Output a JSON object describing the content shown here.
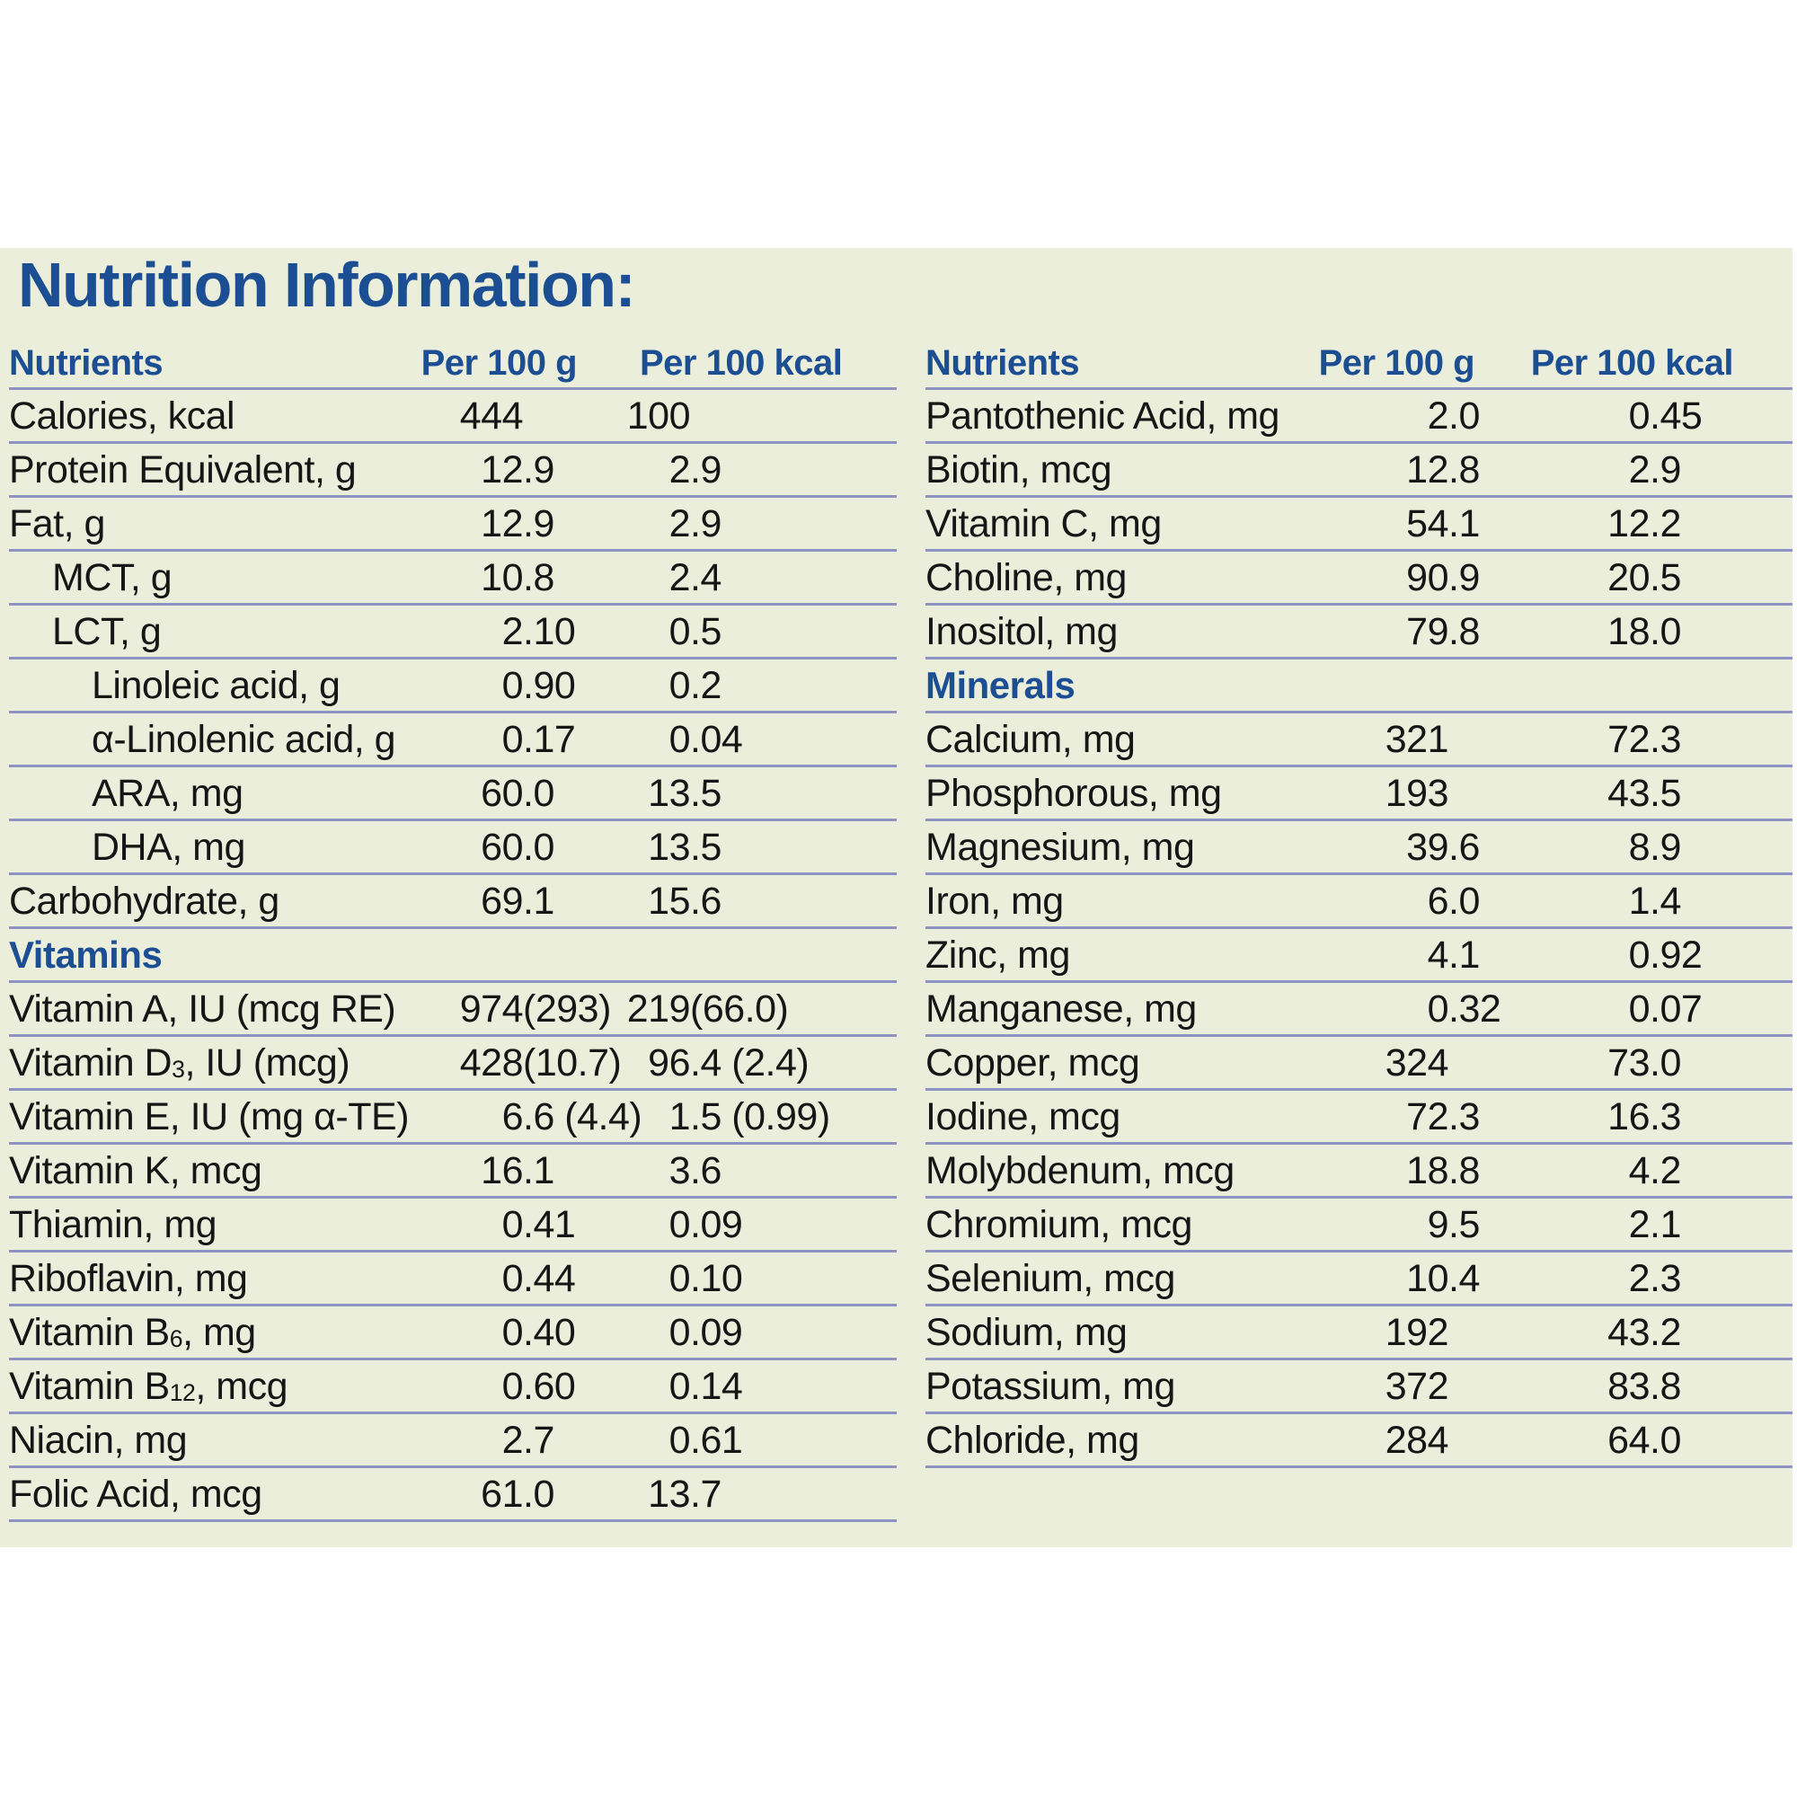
{
  "title": "Nutrition Information:",
  "colors": {
    "accent": "#1b4e92",
    "panel-bg": "#ebeeda",
    "line": "#8f93c3",
    "text": "#161616"
  },
  "columns": {
    "nutrients": "Nutrients",
    "per_100g": "Per 100 g",
    "per_100kcal": "Per 100 kcal"
  },
  "left_table": {
    "rows": [
      {
        "label": "Calories, kcal",
        "indent": 0,
        "per_100g": "444",
        "per_100kcal": "100"
      },
      {
        "label": "Protein Equivalent, g",
        "indent": 0,
        "per_100g": "12.9",
        "per_100kcal": "2.9"
      },
      {
        "label": "Fat, g",
        "indent": 0,
        "per_100g": "12.9",
        "per_100kcal": "2.9"
      },
      {
        "label": "MCT, g",
        "indent": 1,
        "per_100g": "10.8",
        "per_100kcal": "2.4"
      },
      {
        "label": "LCT, g",
        "indent": 1,
        "per_100g": "2.10",
        "per_100kcal": "0.5"
      },
      {
        "label": "Linoleic acid, g",
        "indent": 2,
        "per_100g": "0.90",
        "per_100kcal": "0.2"
      },
      {
        "label": "α-Linolenic acid, g",
        "indent": 2,
        "per_100g": "0.17",
        "per_100kcal": "0.04"
      },
      {
        "label": "ARA, mg",
        "indent": 2,
        "per_100g": "60.0",
        "per_100kcal": "13.5"
      },
      {
        "label": "DHA, mg",
        "indent": 2,
        "per_100g": "60.0",
        "per_100kcal": "13.5"
      },
      {
        "label": "Carbohydrate, g",
        "indent": 0,
        "per_100g": "69.1",
        "per_100kcal": "15.6"
      },
      {
        "section": "Vitamins"
      },
      {
        "label": "Vitamin A, IU (mcg RE)",
        "indent": 0,
        "per_100g": "974 (293)",
        "per_100kcal": "219 (66.0)"
      },
      {
        "label": "Vitamin D[3], IU (mcg)",
        "indent": 0,
        "per_100g": "428 (10.7)",
        "per_100kcal": "96.4 (2.4)"
      },
      {
        "label": "Vitamin E, IU (mg α-TE)",
        "indent": 0,
        "per_100g": "6.6 (4.4)",
        "per_100kcal": "1.5 (0.99)"
      },
      {
        "label": "Vitamin K, mcg",
        "indent": 0,
        "per_100g": "16.1",
        "per_100kcal": "3.6"
      },
      {
        "label": "Thiamin, mg",
        "indent": 0,
        "per_100g": "0.41",
        "per_100kcal": "0.09"
      },
      {
        "label": "Riboflavin, mg",
        "indent": 0,
        "per_100g": "0.44",
        "per_100kcal": "0.10"
      },
      {
        "label": "Vitamin B[6], mg",
        "indent": 0,
        "per_100g": "0.40",
        "per_100kcal": "0.09"
      },
      {
        "label": "Vitamin B[12], mcg",
        "indent": 0,
        "per_100g": "0.60",
        "per_100kcal": "0.14"
      },
      {
        "label": "Niacin, mg",
        "indent": 0,
        "per_100g": "2.7",
        "per_100kcal": "0.61"
      },
      {
        "label": "Folic Acid, mcg",
        "indent": 0,
        "per_100g": "61.0",
        "per_100kcal": "13.7"
      }
    ]
  },
  "right_table": {
    "rows": [
      {
        "label": "Pantothenic Acid, mg",
        "indent": 0,
        "per_100g": "2.0",
        "per_100kcal": "0.45"
      },
      {
        "label": "Biotin, mcg",
        "indent": 0,
        "per_100g": "12.8",
        "per_100kcal": "2.9"
      },
      {
        "label": "Vitamin C, mg",
        "indent": 0,
        "per_100g": "54.1",
        "per_100kcal": "12.2"
      },
      {
        "label": "Choline, mg",
        "indent": 0,
        "per_100g": "90.9",
        "per_100kcal": "20.5"
      },
      {
        "label": "Inositol, mg",
        "indent": 0,
        "per_100g": "79.8",
        "per_100kcal": "18.0"
      },
      {
        "section": "Minerals"
      },
      {
        "label": "Calcium, mg",
        "indent": 0,
        "per_100g": "321",
        "per_100kcal": "72.3"
      },
      {
        "label": "Phosphorous, mg",
        "indent": 0,
        "per_100g": "193",
        "per_100kcal": "43.5"
      },
      {
        "label": "Magnesium, mg",
        "indent": 0,
        "per_100g": "39.6",
        "per_100kcal": "8.9"
      },
      {
        "label": "Iron, mg",
        "indent": 0,
        "per_100g": "6.0",
        "per_100kcal": "1.4"
      },
      {
        "label": "Zinc, mg",
        "indent": 0,
        "per_100g": "4.1",
        "per_100kcal": "0.92"
      },
      {
        "label": "Manganese, mg",
        "indent": 0,
        "per_100g": "0.32",
        "per_100kcal": "0.07"
      },
      {
        "label": "Copper, mcg",
        "indent": 0,
        "per_100g": "324",
        "per_100kcal": "73.0"
      },
      {
        "label": "Iodine, mcg",
        "indent": 0,
        "per_100g": "72.3",
        "per_100kcal": "16.3"
      },
      {
        "label": "Molybdenum, mcg",
        "indent": 0,
        "per_100g": "18.8",
        "per_100kcal": "4.2"
      },
      {
        "label": "Chromium, mcg",
        "indent": 0,
        "per_100g": "9.5",
        "per_100kcal": "2.1"
      },
      {
        "label": "Selenium, mcg",
        "indent": 0,
        "per_100g": "10.4",
        "per_100kcal": "2.3"
      },
      {
        "label": "Sodium, mg",
        "indent": 0,
        "per_100g": "192",
        "per_100kcal": "43.2"
      },
      {
        "label": "Potassium, mg",
        "indent": 0,
        "per_100g": "372",
        "per_100kcal": "83.8"
      },
      {
        "label": "Chloride, mg",
        "indent": 0,
        "per_100g": "284",
        "per_100kcal": "64.0"
      }
    ]
  }
}
